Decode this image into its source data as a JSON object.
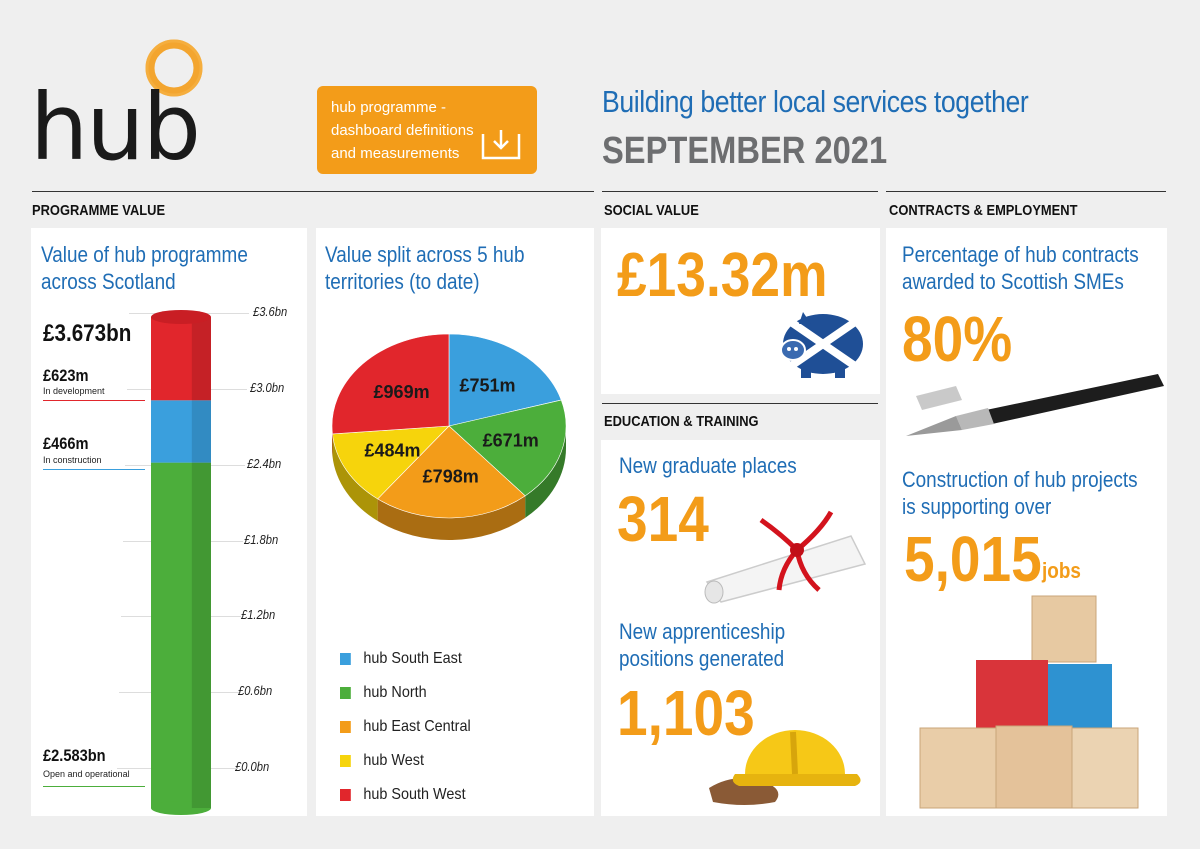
{
  "logo": {
    "text": "hub"
  },
  "download": {
    "line1": "hub programme -",
    "line2": "dashboard definitions",
    "line3": "and measurements"
  },
  "header": {
    "title": "Building better local services together",
    "subtitle": "SEPTEMBER 2021"
  },
  "sections": {
    "programme_value": "PROGRAMME VALUE",
    "social_value": "SOCIAL VALUE",
    "contracts": "CONTRACTS & EMPLOYMENT",
    "education": "EDUCATION & TRAINING"
  },
  "programme": {
    "title1": "Value of hub programme",
    "title2": "across Scotland",
    "total": "£3.673bn",
    "dev_value": "£623m",
    "dev_label": "In development",
    "cons_value": "£466m",
    "cons_label": "In construction",
    "open_value": "£2.583bn",
    "open_label": "Open and operational",
    "ticks": [
      "£3.6bn",
      "£3.0bn",
      "£2.4bn",
      "£1.8bn",
      "£1.2bn",
      "£0.6bn",
      "£0.0bn"
    ]
  },
  "split": {
    "title1": "Value split across 5 hub",
    "title2": "territories (to date)"
  },
  "chart_data": [
    {
      "type": "bar",
      "categories": [
        "Open and operational",
        "In construction",
        "In development"
      ],
      "values": [
        2.583,
        0.466,
        0.623
      ],
      "stacked": true,
      "ylim": [
        0,
        3.6
      ],
      "colors": [
        "#4cae3b",
        "#3a9fdd",
        "#e1262c"
      ]
    },
    {
      "type": "pie",
      "labels": [
        "hub South East",
        "hub North",
        "hub East Central",
        "hub West",
        "hub South West"
      ],
      "display": [
        "£751m",
        "£671m",
        "£798m",
        "£484m",
        "£969m"
      ],
      "values": [
        751,
        671,
        798,
        484,
        969
      ],
      "colors": [
        "#3a9fdd",
        "#4cae3b",
        "#f39c19",
        "#f6d40c",
        "#e1262c"
      ],
      "legend": "bottom"
    }
  ],
  "social": {
    "value": "£13.32m"
  },
  "education": {
    "grad_label": "New graduate places",
    "grad_value": "314",
    "app_label1": "New apprenticeship",
    "app_label2": "positions generated",
    "app_value": "1,103"
  },
  "contracts": {
    "pct_label1": "Percentage of hub contracts",
    "pct_label2": "awarded to Scottish SMEs",
    "pct_value": "80%",
    "jobs_label1": "Construction of hub projects",
    "jobs_label2": "is supporting over",
    "jobs_value": "5,015",
    "jobs_unit": "jobs"
  },
  "colors": {
    "accent": "#f39c19",
    "blue": "#1f6db5"
  }
}
